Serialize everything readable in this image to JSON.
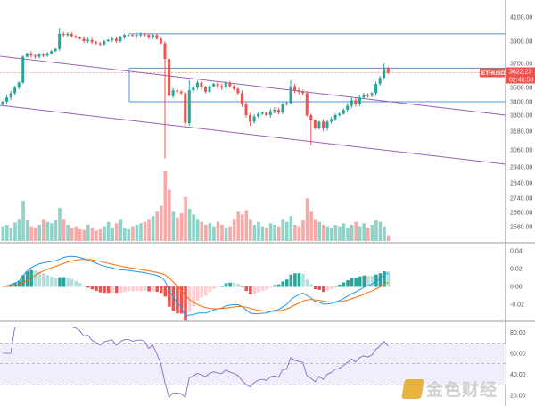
{
  "chart_data": {
    "type": "candlestick",
    "symbol": "ETHUSDT",
    "last_price": "3622.23",
    "countdown": "02:46:58",
    "price_ticks": [
      "4100.00",
      "3900.00",
      "3700.00",
      "3500.00",
      "3400.00",
      "3300.00",
      "3180.00",
      "3060.00",
      "2940.00",
      "2840.00",
      "2740.00",
      "2660.00",
      "2580.00"
    ],
    "price_tick_values": [
      4100,
      3900,
      3700,
      3500,
      3400,
      3300,
      3180,
      3060,
      2940,
      2840,
      2740,
      2660,
      2580
    ],
    "macd_ticks": [
      "0.04",
      "0.02",
      "0.00",
      "-0.02"
    ],
    "macd_tick_values": [
      0.04,
      0.02,
      0,
      -0.02
    ],
    "rsi_ticks": [
      "80.00",
      "60.00",
      "40.00",
      "20.00"
    ],
    "rsi_tick_values": [
      80,
      60,
      40,
      20
    ],
    "rsi_band": [
      30,
      70
    ],
    "closes": [
      3400,
      3430,
      3460,
      3500,
      3540,
      3760,
      3790,
      3770,
      3760,
      3780,
      3770,
      3790,
      3810,
      3830,
      3960,
      3950,
      3960,
      3940,
      3930,
      3920,
      3900,
      3910,
      3890,
      3880,
      3870,
      3900,
      3910,
      3920,
      3900,
      3930,
      3950,
      3950,
      3945,
      3950,
      3955,
      3950,
      3930,
      3950,
      3920,
      3880,
      3740,
      3440,
      3480,
      3470,
      3460,
      3240,
      3480,
      3500,
      3540,
      3500,
      3470,
      3510,
      3530,
      3510,
      3500,
      3540,
      3510,
      3490,
      3460,
      3380,
      3300,
      3250,
      3290,
      3310,
      3320,
      3300,
      3330,
      3340,
      3320,
      3380,
      3390,
      3510,
      3480,
      3470,
      3460,
      3300,
      3260,
      3200,
      3250,
      3200,
      3250,
      3270,
      3300,
      3310,
      3340,
      3370,
      3410,
      3380,
      3430,
      3450,
      3440,
      3460,
      3530,
      3580,
      3660,
      3622.23
    ],
    "wick_lows": {
      "40": 3000,
      "45": 3200,
      "76": 3090,
      "61": 3220
    },
    "wick_highs": {
      "14": 4010,
      "46": 3560,
      "71": 3560,
      "94": 3700
    },
    "volumes": [
      20,
      22,
      18,
      25,
      30,
      55,
      28,
      20,
      18,
      22,
      30,
      26,
      24,
      28,
      45,
      30,
      22,
      18,
      20,
      16,
      15,
      22,
      18,
      14,
      16,
      20,
      26,
      18,
      24,
      30,
      18,
      16,
      20,
      22,
      24,
      26,
      30,
      34,
      40,
      48,
      95,
      70,
      40,
      32,
      38,
      60,
      44,
      36,
      30,
      26,
      22,
      24,
      20,
      26,
      22,
      18,
      20,
      30,
      40,
      36,
      42,
      30,
      22,
      26,
      20,
      18,
      24,
      22,
      20,
      30,
      26,
      34,
      22,
      20,
      28,
      58,
      40,
      30,
      26,
      22,
      20,
      18,
      22,
      20,
      24,
      18,
      22,
      26,
      20,
      24,
      18,
      22,
      28,
      26,
      20,
      8
    ],
    "levels": [
      3960,
      3660,
      3400
    ],
    "channel_upper": [
      3800,
      3300
    ],
    "channel_lower": [
      3420,
      2950
    ]
  },
  "watermark": "金色财经"
}
